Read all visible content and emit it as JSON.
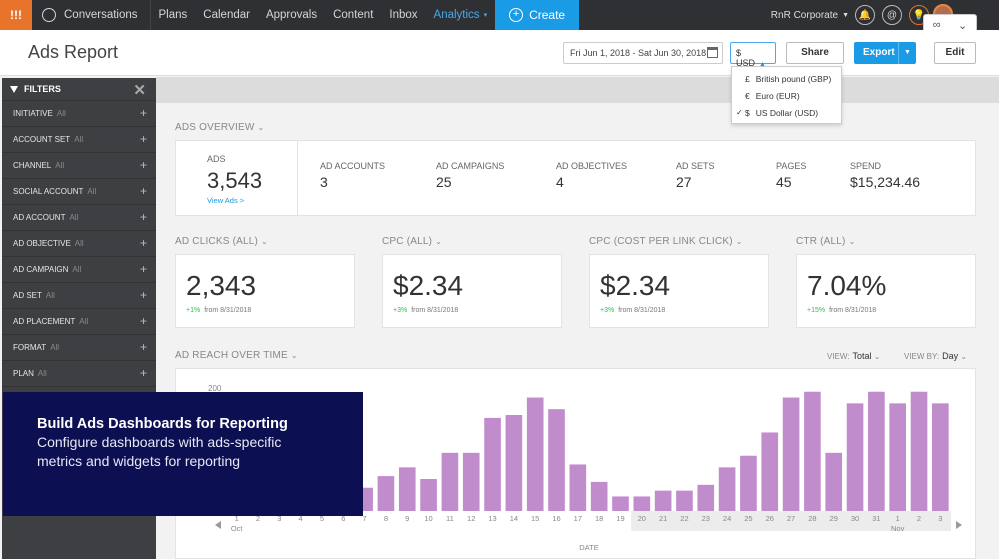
{
  "nav": {
    "brand": "!!!",
    "conversations": "Conversations",
    "items": [
      "Plans",
      "Calendar",
      "Approvals",
      "Content",
      "Inbox"
    ],
    "analytics": "Analytics",
    "create": "Create",
    "org": "RnR Corporate",
    "icon_labels": [
      "🔔",
      "@",
      "💡"
    ]
  },
  "header": {
    "title": "Ads Report",
    "date_range": "Fri Jun 1, 2018 - Sat Jun 30, 2018",
    "currency": "$ USD",
    "share": "Share",
    "export": "Export",
    "edit": "Edit"
  },
  "currency_menu": {
    "options": [
      {
        "symbol": "£",
        "label": "British pound (GBP)",
        "selected": false
      },
      {
        "symbol": "€",
        "label": "Euro (EUR)",
        "selected": false
      },
      {
        "symbol": "$",
        "label": "US Dollar (USD)",
        "selected": true
      }
    ]
  },
  "sidebar": {
    "title": "FILTERS",
    "all_label": "All",
    "filters": [
      "INITIATIVE",
      "ACCOUNT SET",
      "CHANNEL",
      "SOCIAL ACCOUNT",
      "AD ACCOUNT",
      "AD OBJECTIVE",
      "AD CAMPAIGN",
      "AD SET",
      "AD PLACEMENT",
      "FORMAT",
      "PLAN"
    ]
  },
  "overview": {
    "section": "ADS OVERVIEW",
    "ads_label": "ADS",
    "ads_value": "3,543",
    "view_ads": "View Ads >",
    "metrics": [
      {
        "label": "AD ACCOUNTS",
        "value": "3"
      },
      {
        "label": "AD CAMPAIGNS",
        "value": "25"
      },
      {
        "label": "AD OBJECTIVES",
        "value": "4"
      },
      {
        "label": "AD SETS",
        "value": "27"
      },
      {
        "label": "PAGES",
        "value": "45"
      },
      {
        "label": "SPEND",
        "value": "$15,234.46"
      }
    ]
  },
  "kpis": [
    {
      "label": "AD CLICKS (ALL)",
      "value": "2,343",
      "delta": "+1%",
      "from": "from 8/31/2018"
    },
    {
      "label": "CPC (ALL)",
      "value": "$2.34",
      "delta": "+3%",
      "from": "from 8/31/2018"
    },
    {
      "label": "CPC (COST PER LINK CLICK)",
      "value": "$2.34",
      "delta": "+3%",
      "from": "from 8/31/2018"
    },
    {
      "label": "CTR (ALL)",
      "value": "7.04%",
      "delta": "+15%",
      "from": "from 8/31/2018"
    }
  ],
  "reach": {
    "section": "AD REACH OVER TIME",
    "view_label": "VIEW:",
    "view_value": "Total",
    "view_by_label": "VIEW BY:",
    "view_by_value": "Day"
  },
  "chart_data": {
    "type": "bar",
    "title": "AD REACH OVER TIME",
    "xlabel": "DATE",
    "ylabel": "",
    "ylim": [
      0,
      200
    ],
    "y_tick_visible": "200",
    "categories": [
      "1",
      "2",
      "3",
      "4",
      "5",
      "6",
      "7",
      "8",
      "9",
      "10",
      "11",
      "12",
      "13",
      "14",
      "15",
      "16",
      "17",
      "18",
      "19",
      "20",
      "21",
      "22",
      "23",
      "24",
      "25",
      "26",
      "27",
      "28",
      "29",
      "30",
      "31",
      "1",
      "2",
      "3"
    ],
    "month_labels": [
      {
        "at": "1",
        "label": "Oct"
      },
      {
        "at": "1 ",
        "label": "Nov"
      }
    ],
    "values": [
      60,
      55,
      50,
      60,
      45,
      70,
      40,
      60,
      75,
      55,
      100,
      100,
      160,
      165,
      195,
      175,
      80,
      50,
      25,
      25,
      35,
      35,
      45,
      75,
      95,
      135,
      195,
      205,
      100,
      185,
      205,
      185,
      205,
      185
    ],
    "color": "#c08ccb"
  },
  "promo": {
    "title": "Build Ads Dashboards for Reporting",
    "subtitle": "Configure dashboards with ads-specific metrics and widgets for reporting"
  },
  "colors": {
    "nav_bg": "#2f3033",
    "accent": "#1a9be6",
    "brand": "#e8732a",
    "sidebar_bg": "#3e3f42",
    "bar": "#c08ccb",
    "positive": "#2dbd51",
    "promo_bg": "#0c0f52"
  }
}
